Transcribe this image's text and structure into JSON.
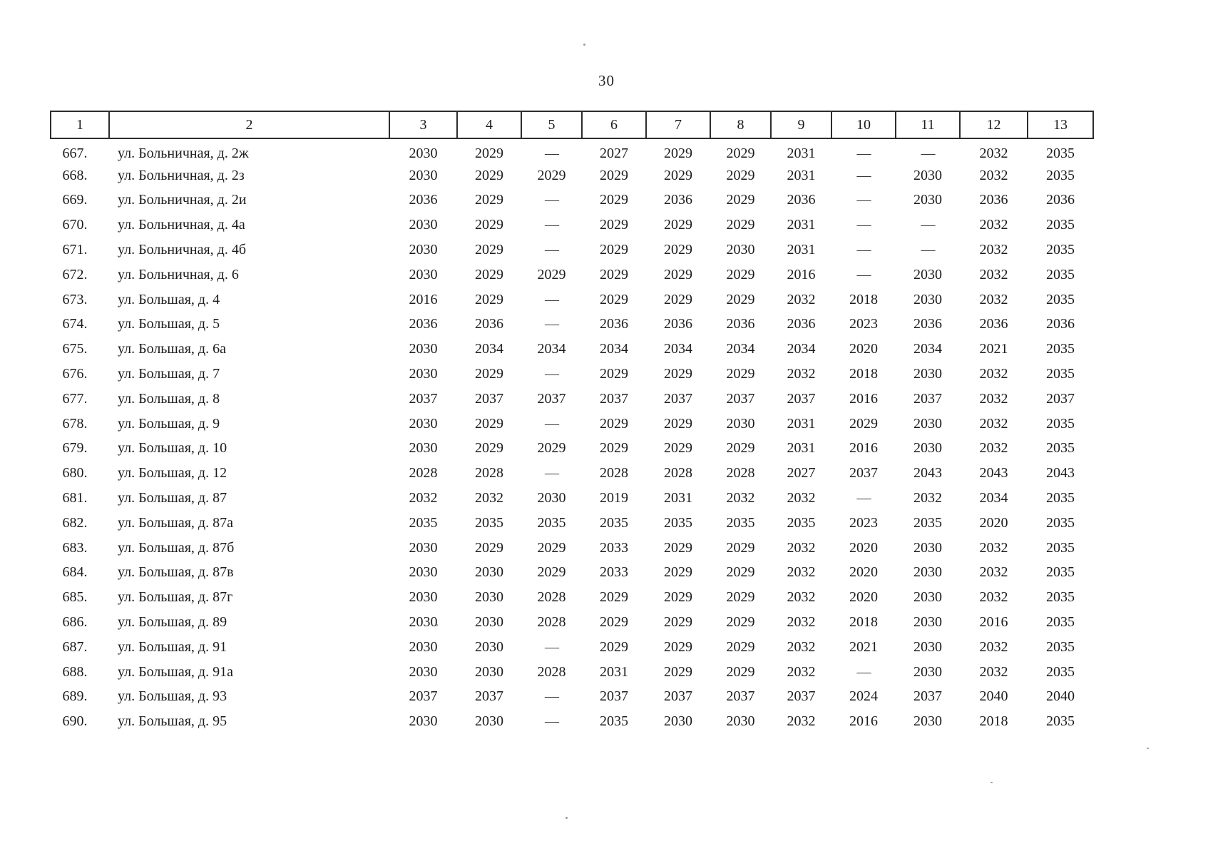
{
  "page": {
    "number": "30"
  },
  "table": {
    "column_headers": [
      "1",
      "2",
      "3",
      "4",
      "5",
      "6",
      "7",
      "8",
      "9",
      "10",
      "11",
      "12",
      "13"
    ],
    "dash": "—",
    "rows": [
      {
        "num": "667.",
        "address": "ул. Больничная, д. 2ж",
        "values": [
          "2030",
          "2029",
          "—",
          "2027",
          "2029",
          "2029",
          "2031",
          "—",
          "—",
          "2032",
          "2035"
        ]
      },
      {
        "num": "668.",
        "address": "ул. Больничная, д. 2з",
        "values": [
          "2030",
          "2029",
          "2029",
          "2029",
          "2029",
          "2029",
          "2031",
          "—",
          "2030",
          "2032",
          "2035"
        ]
      },
      {
        "num": "669.",
        "address": "ул. Больничная, д. 2и",
        "values": [
          "2036",
          "2029",
          "—",
          "2029",
          "2036",
          "2029",
          "2036",
          "—",
          "2030",
          "2036",
          "2036"
        ]
      },
      {
        "num": "670.",
        "address": "ул. Больничная, д. 4а",
        "values": [
          "2030",
          "2029",
          "—",
          "2029",
          "2029",
          "2029",
          "2031",
          "—",
          "—",
          "2032",
          "2035"
        ]
      },
      {
        "num": "671.",
        "address": "ул. Больничная, д. 4б",
        "values": [
          "2030",
          "2029",
          "—",
          "2029",
          "2029",
          "2030",
          "2031",
          "—",
          "—",
          "2032",
          "2035"
        ]
      },
      {
        "num": "672.",
        "address": "ул. Больничная, д. 6",
        "values": [
          "2030",
          "2029",
          "2029",
          "2029",
          "2029",
          "2029",
          "2016",
          "—",
          "2030",
          "2032",
          "2035"
        ]
      },
      {
        "num": "673.",
        "address": "ул. Большая, д. 4",
        "values": [
          "2016",
          "2029",
          "—",
          "2029",
          "2029",
          "2029",
          "2032",
          "2018",
          "2030",
          "2032",
          "2035"
        ]
      },
      {
        "num": "674.",
        "address": "ул. Большая, д. 5",
        "values": [
          "2036",
          "2036",
          "—",
          "2036",
          "2036",
          "2036",
          "2036",
          "2023",
          "2036",
          "2036",
          "2036"
        ]
      },
      {
        "num": "675.",
        "address": "ул. Большая, д. 6а",
        "values": [
          "2030",
          "2034",
          "2034",
          "2034",
          "2034",
          "2034",
          "2034",
          "2020",
          "2034",
          "2021",
          "2035"
        ]
      },
      {
        "num": "676.",
        "address": "ул. Большая, д. 7",
        "values": [
          "2030",
          "2029",
          "—",
          "2029",
          "2029",
          "2029",
          "2032",
          "2018",
          "2030",
          "2032",
          "2035"
        ]
      },
      {
        "num": "677.",
        "address": "ул. Большая, д. 8",
        "values": [
          "2037",
          "2037",
          "2037",
          "2037",
          "2037",
          "2037",
          "2037",
          "2016",
          "2037",
          "2032",
          "2037"
        ]
      },
      {
        "num": "678.",
        "address": "ул. Большая, д. 9",
        "values": [
          "2030",
          "2029",
          "—",
          "2029",
          "2029",
          "2030",
          "2031",
          "2029",
          "2030",
          "2032",
          "2035"
        ]
      },
      {
        "num": "679.",
        "address": "ул. Большая, д. 10",
        "values": [
          "2030",
          "2029",
          "2029",
          "2029",
          "2029",
          "2029",
          "2031",
          "2016",
          "2030",
          "2032",
          "2035"
        ]
      },
      {
        "num": "680.",
        "address": "ул. Большая, д. 12",
        "values": [
          "2028",
          "2028",
          "—",
          "2028",
          "2028",
          "2028",
          "2027",
          "2037",
          "2043",
          "2043",
          "2043"
        ]
      },
      {
        "num": "681.",
        "address": "ул. Большая, д. 87",
        "values": [
          "2032",
          "2032",
          "2030",
          "2019",
          "2031",
          "2032",
          "2032",
          "—",
          "2032",
          "2034",
          "2035"
        ]
      },
      {
        "num": "682.",
        "address": "ул. Большая, д. 87а",
        "values": [
          "2035",
          "2035",
          "2035",
          "2035",
          "2035",
          "2035",
          "2035",
          "2023",
          "2035",
          "2020",
          "2035"
        ]
      },
      {
        "num": "683.",
        "address": "ул. Большая, д. 87б",
        "values": [
          "2030",
          "2029",
          "2029",
          "2033",
          "2029",
          "2029",
          "2032",
          "2020",
          "2030",
          "2032",
          "2035"
        ]
      },
      {
        "num": "684.",
        "address": "ул. Большая, д. 87в",
        "values": [
          "2030",
          "2030",
          "2029",
          "2033",
          "2029",
          "2029",
          "2032",
          "2020",
          "2030",
          "2032",
          "2035"
        ]
      },
      {
        "num": "685.",
        "address": "ул. Большая, д. 87г",
        "values": [
          "2030",
          "2030",
          "2028",
          "2029",
          "2029",
          "2029",
          "2032",
          "2020",
          "2030",
          "2032",
          "2035"
        ]
      },
      {
        "num": "686.",
        "address": "ул. Большая, д. 89",
        "values": [
          "2030",
          "2030",
          "2028",
          "2029",
          "2029",
          "2029",
          "2032",
          "2018",
          "2030",
          "2016",
          "2035"
        ]
      },
      {
        "num": "687.",
        "address": "ул. Большая, д. 91",
        "values": [
          "2030",
          "2030",
          "—",
          "2029",
          "2029",
          "2029",
          "2032",
          "2021",
          "2030",
          "2032",
          "2035"
        ]
      },
      {
        "num": "688.",
        "address": "ул. Большая, д. 91а",
        "values": [
          "2030",
          "2030",
          "2028",
          "2031",
          "2029",
          "2029",
          "2032",
          "—",
          "2030",
          "2032",
          "2035"
        ]
      },
      {
        "num": "689.",
        "address": "ул. Большая, д. 93",
        "values": [
          "2037",
          "2037",
          "—",
          "2037",
          "2037",
          "2037",
          "2037",
          "2024",
          "2037",
          "2040",
          "2040"
        ]
      },
      {
        "num": "690.",
        "address": "ул. Большая, д. 95",
        "values": [
          "2030",
          "2030",
          "—",
          "2035",
          "2030",
          "2030",
          "2032",
          "2016",
          "2030",
          "2018",
          "2035"
        ]
      }
    ]
  }
}
